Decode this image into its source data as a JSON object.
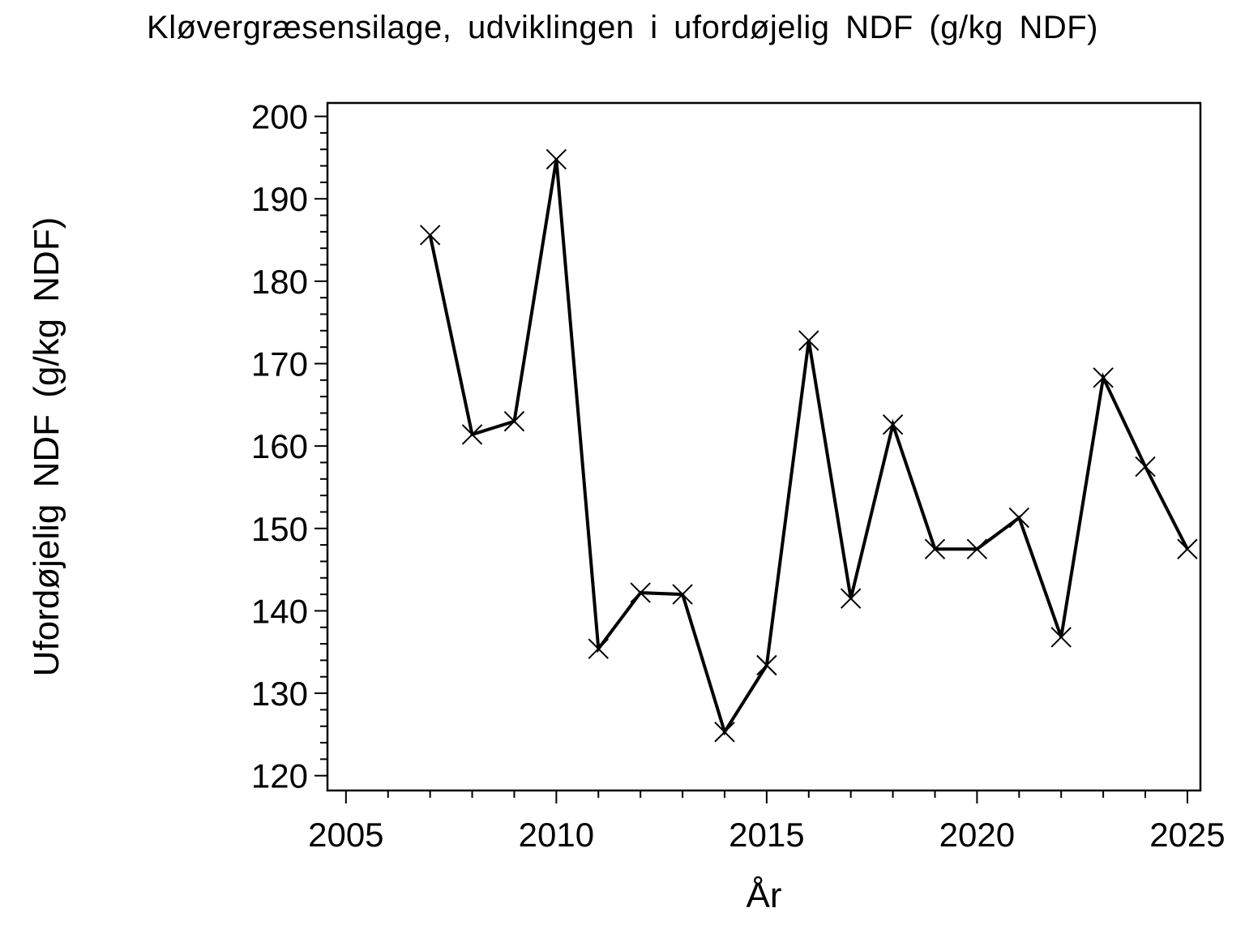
{
  "page": {
    "background": "#ffffff",
    "foreground": "#000000"
  },
  "chart_data": {
    "type": "line",
    "title": "Kløvergræsensilage, udviklingen i ufordøjelig NDF (g/kg NDF)",
    "xlabel": "År",
    "ylabel": "Ufordøjelig NDF (g/kg NDF)",
    "x": [
      2007,
      2008,
      2009,
      2010,
      2011,
      2012,
      2013,
      2014,
      2015,
      2016,
      2017,
      2018,
      2019,
      2020,
      2021,
      2022,
      2023,
      2024,
      2025
    ],
    "values": [
      185.6,
      161.4,
      163.0,
      194.8,
      135.4,
      142.2,
      142.0,
      125.3,
      133.4,
      172.8,
      141.5,
      162.6,
      147.5,
      147.5,
      151.3,
      136.8,
      168.3,
      157.5,
      147.5
    ],
    "marker": "x",
    "line_color": "#000000",
    "marker_color": "#000000",
    "background": "#ffffff",
    "xlim": [
      2004.56,
      2025.31
    ],
    "ylim": [
      118.2,
      201.63
    ],
    "x_major_ticks": [
      2005,
      2010,
      2015,
      2020,
      2025
    ],
    "x_minor_step": 1,
    "y_major_ticks": [
      120,
      130,
      140,
      150,
      160,
      170,
      180,
      190,
      200
    ],
    "y_minor_step": 2,
    "grid": "off",
    "legend": "none"
  }
}
